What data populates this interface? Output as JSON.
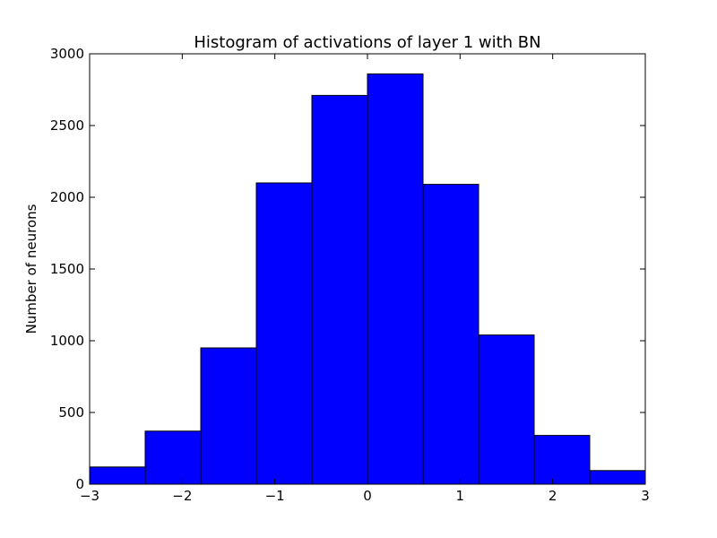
{
  "chart_data": {
    "type": "bar",
    "title": "Histogram of activations of layer 1  with BN",
    "xlabel": "",
    "ylabel": "Number of neurons",
    "xlim": [
      -3,
      3
    ],
    "ylim": [
      0,
      3000
    ],
    "bin_edges": [
      -3,
      -2.4,
      -1.8,
      -1.2,
      -0.6,
      0,
      0.6,
      1.2,
      1.8,
      2.4,
      3
    ],
    "values": [
      120,
      370,
      950,
      2100,
      2710,
      2860,
      2090,
      1040,
      340,
      95
    ],
    "xticks": [
      -3,
      -2,
      -1,
      0,
      1,
      2,
      3
    ],
    "xtick_labels": [
      "−3",
      "−2",
      "−1",
      "0",
      "1",
      "2",
      "3"
    ],
    "yticks": [
      0,
      500,
      1000,
      1500,
      2000,
      2500,
      3000
    ],
    "ytick_labels": [
      "0",
      "500",
      "1000",
      "1500",
      "2000",
      "2500",
      "3000"
    ],
    "bar_color": "#0000ff",
    "edge_color": "#000000",
    "grid": false,
    "legend": "none"
  }
}
